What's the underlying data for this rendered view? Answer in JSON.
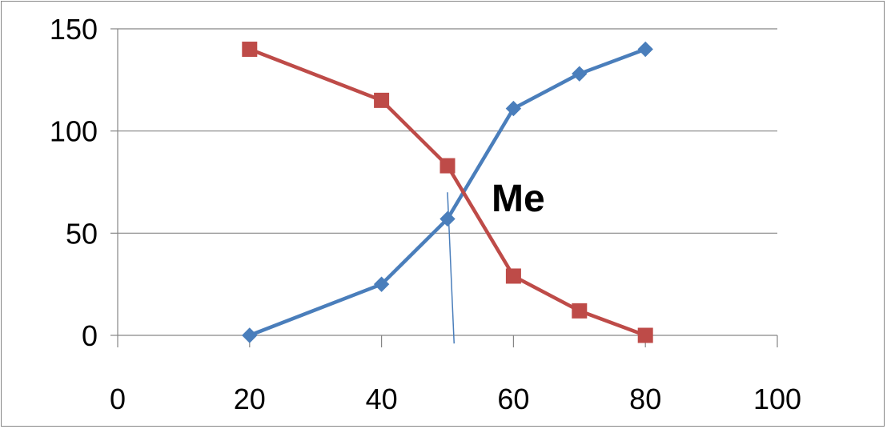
{
  "chart_data": {
    "type": "line",
    "title": "",
    "xlabel": "",
    "ylabel": "",
    "xlim": [
      0,
      100
    ],
    "ylim": [
      0,
      150
    ],
    "x_ticks": [
      0,
      20,
      40,
      60,
      80,
      100
    ],
    "y_ticks": [
      0,
      50,
      100,
      150
    ],
    "x_tick_labels": [
      "0",
      "20",
      "40",
      "60",
      "80",
      "100"
    ],
    "y_tick_labels": [
      "0",
      "50",
      "100",
      "150"
    ],
    "grid": "horizontal",
    "legend": "none",
    "series": [
      {
        "marker": "diamond",
        "color": "#4a7ebb",
        "x": [
          20,
          40,
          50,
          60,
          70,
          80
        ],
        "y": [
          0,
          25,
          57,
          111,
          128,
          140
        ]
      },
      {
        "marker": "square",
        "color": "#be4b48",
        "x": [
          20,
          40,
          50,
          60,
          70,
          80
        ],
        "y": [
          140,
          115,
          83,
          29,
          12,
          0
        ]
      }
    ],
    "annotations": [
      {
        "text": "Me",
        "type": "median-line",
        "line_from": {
          "x": 50,
          "y": 70
        },
        "line_to": {
          "x": 51,
          "y": -4
        },
        "color": "#4a7ebb"
      }
    ]
  }
}
